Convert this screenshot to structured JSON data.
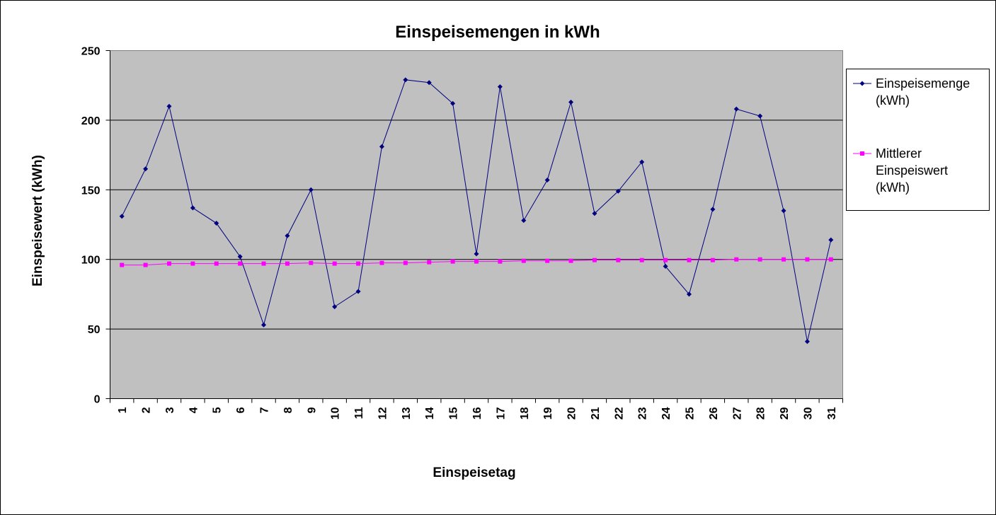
{
  "chart_data": {
    "type": "line",
    "title": "Einspeisemengen in kWh",
    "xlabel": "Einspeisetag",
    "ylabel": "Einspeisewert (kWh)",
    "ylim": [
      0,
      250
    ],
    "yticks": [
      "0",
      "50",
      "100",
      "150",
      "200",
      "250"
    ],
    "grid": true,
    "legend_position": "right",
    "categories": [
      "1",
      "2",
      "3",
      "4",
      "5",
      "6",
      "7",
      "8",
      "9",
      "10",
      "11",
      "12",
      "13",
      "14",
      "15",
      "16",
      "17",
      "18",
      "19",
      "20",
      "21",
      "22",
      "23",
      "24",
      "25",
      "26",
      "27",
      "28",
      "29",
      "30",
      "31"
    ],
    "series": [
      {
        "name_lines": [
          "Einspeisemenge",
          "(kWh)"
        ],
        "color": "#000080",
        "marker": "diamond",
        "values": [
          131,
          165,
          210,
          137,
          126,
          102,
          53,
          117,
          150,
          66,
          77,
          181,
          229,
          227,
          212,
          104,
          224,
          128,
          157,
          213,
          133,
          149,
          170,
          95,
          75,
          136,
          208,
          203,
          135,
          41,
          114
        ]
      },
      {
        "name_lines": [
          "Mittlerer",
          "Einspeiswert",
          "(kWh)"
        ],
        "color": "#ff00ff",
        "marker": "square",
        "values": [
          96,
          96,
          97,
          97,
          97,
          97,
          97,
          97,
          97.5,
          97,
          97,
          97.5,
          97.5,
          98,
          98.5,
          98.5,
          98.5,
          99,
          99,
          99,
          99.5,
          99.5,
          99.5,
          99.5,
          99.5,
          99.5,
          100,
          100,
          100,
          100,
          100
        ]
      }
    ]
  }
}
